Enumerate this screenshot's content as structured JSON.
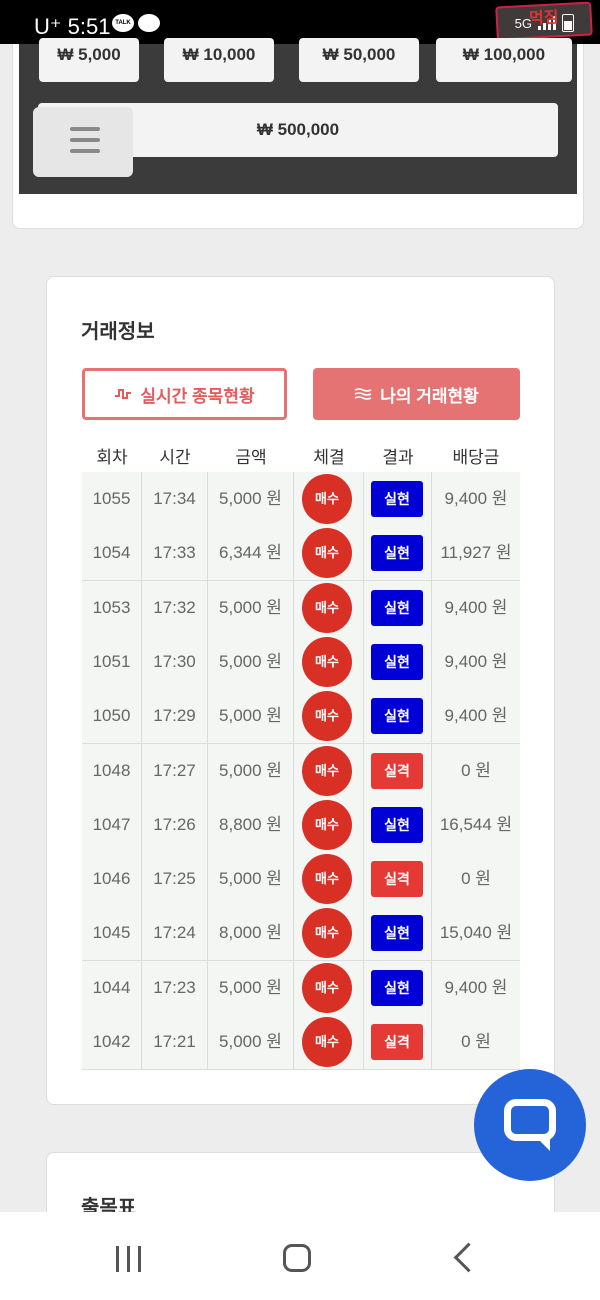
{
  "status_bar": {
    "carrier": "U⁺",
    "time": "5:51",
    "talk_icon_label": "TALK",
    "network": "5G",
    "watermark_text": "먹짐"
  },
  "amount_buttons": [
    "₩ 5,000",
    "₩ 10,000",
    "₩ 50,000",
    "₩ 100,000",
    "₩ 500,000"
  ],
  "trade_info": {
    "title": "거래정보",
    "tab_realtime": "실시간 종목현황",
    "tab_mine": "나의 거래현황",
    "columns": [
      "회차",
      "시간",
      "금액",
      "체결",
      "결과",
      "배당금"
    ],
    "rows": [
      {
        "round": "1055",
        "time": "17:34",
        "amount": "5,000 원",
        "exec": "매수",
        "result": "실현",
        "payout": "9,400 원"
      },
      {
        "round": "1054",
        "time": "17:33",
        "amount": "6,344 원",
        "exec": "매수",
        "result": "실현",
        "payout": "11,927 원"
      },
      {
        "round": "1053",
        "time": "17:32",
        "amount": "5,000 원",
        "exec": "매수",
        "result": "실현",
        "payout": "9,400 원"
      },
      {
        "round": "1051",
        "time": "17:30",
        "amount": "5,000 원",
        "exec": "매수",
        "result": "실현",
        "payout": "9,400 원"
      },
      {
        "round": "1050",
        "time": "17:29",
        "amount": "5,000 원",
        "exec": "매수",
        "result": "실현",
        "payout": "9,400 원"
      },
      {
        "round": "1048",
        "time": "17:27",
        "amount": "5,000 원",
        "exec": "매수",
        "result": "실격",
        "payout": "0 원"
      },
      {
        "round": "1047",
        "time": "17:26",
        "amount": "8,800 원",
        "exec": "매수",
        "result": "실현",
        "payout": "16,544 원"
      },
      {
        "round": "1046",
        "time": "17:25",
        "amount": "5,000 원",
        "exec": "매수",
        "result": "실격",
        "payout": "0 원"
      },
      {
        "round": "1045",
        "time": "17:24",
        "amount": "8,000 원",
        "exec": "매수",
        "result": "실현",
        "payout": "15,040 원"
      },
      {
        "round": "1044",
        "time": "17:23",
        "amount": "5,000 원",
        "exec": "매수",
        "result": "실현",
        "payout": "9,400 원"
      },
      {
        "round": "1042",
        "time": "17:21",
        "amount": "5,000 원",
        "exec": "매수",
        "result": "실격",
        "payout": "0 원"
      }
    ]
  },
  "results_table": {
    "title": "출목표"
  },
  "colors": {
    "accent": "#e57373",
    "buy": "#d93025",
    "win": "#0000d6",
    "lose": "#e53935",
    "chat": "#2463d8"
  },
  "icons": {
    "realtime_tab": "pulse-icon",
    "mine_tab": "lines-icon",
    "chat": "chat-bubble-icon",
    "menu": "hamburger-icon"
  }
}
